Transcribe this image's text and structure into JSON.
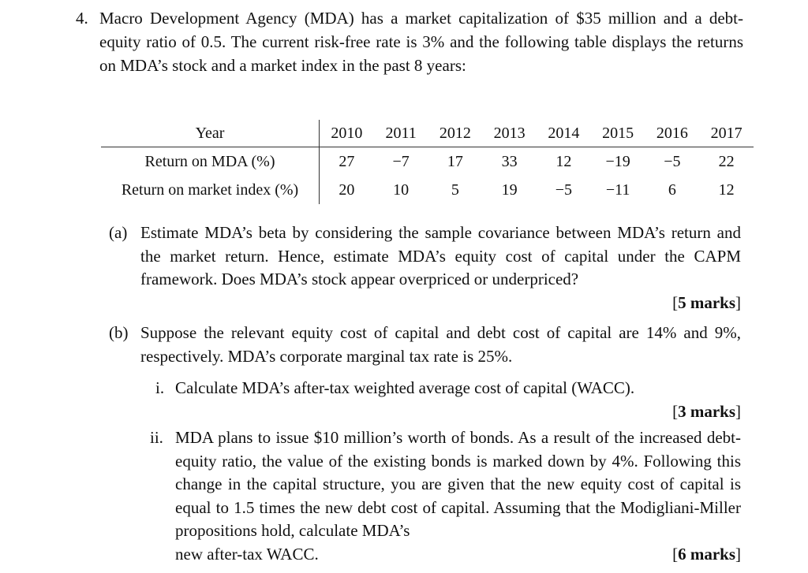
{
  "question": {
    "number": "4.",
    "intro": "Macro Development Agency (MDA) has a market capitalization of $35 million and a debt-equity ratio of 0.5. The current risk-free rate is 3% and the following table displays the returns on MDA’s stock and a market index in the past 8 years:"
  },
  "table": {
    "header_label": "Year",
    "years": [
      "2010",
      "2011",
      "2012",
      "2013",
      "2014",
      "2015",
      "2016",
      "2017"
    ],
    "rows": [
      {
        "label": "Return on MDA (%)",
        "values": [
          "27",
          "−7",
          "17",
          "33",
          "12",
          "−19",
          "−5",
          "22"
        ]
      },
      {
        "label": "Return on market index (%)",
        "values": [
          "20",
          "10",
          "5",
          "19",
          "−5",
          "−11",
          "6",
          "12"
        ]
      }
    ]
  },
  "part_a": {
    "label": "(a)",
    "text": "Estimate MDA’s beta by considering the sample covariance between MDA’s return and the market return. Hence, estimate MDA’s equity cost of capital under the CAPM framework. Does MDA’s stock appear overpriced or underpriced?",
    "marks": "5 marks"
  },
  "part_b": {
    "label": "(b)",
    "text": "Suppose the relevant equity cost of capital and debt cost of capital are 14% and 9%, respectively. MDA’s corporate marginal tax rate is 25%."
  },
  "sub_i": {
    "label": "i.",
    "text": "Calculate MDA’s after-tax weighted average cost of capital (WACC).",
    "marks": "3 marks"
  },
  "sub_ii": {
    "label": "ii.",
    "text": "MDA plans to issue $10 million’s worth of bonds. As a result of the increased debt-equity ratio, the value of the existing bonds is marked down by 4%. Following this change in the capital structure, you are given that the new equity cost of capital is equal to 1.5 times the new debt cost of capital. Assuming that the Modigliani-Miller propositions hold, calculate MDA’s",
    "last_line": "new after-tax WACC.",
    "marks": "6 marks"
  }
}
